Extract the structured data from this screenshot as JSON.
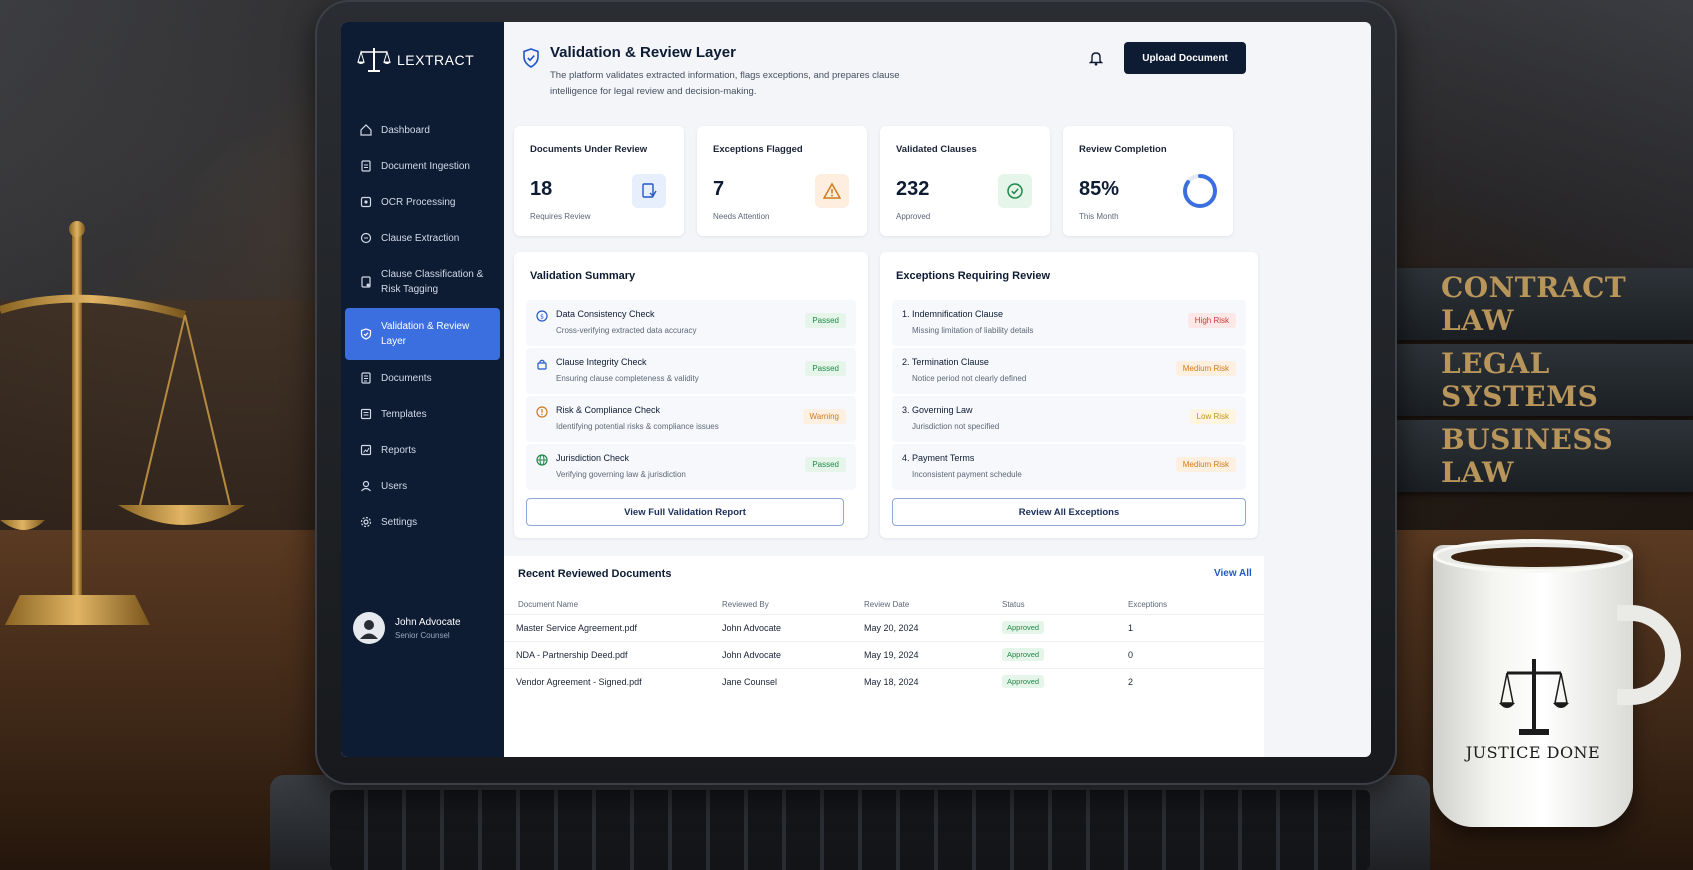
{
  "app": {
    "brand": "LEXTRACT"
  },
  "sidebar": {
    "items": [
      {
        "label": "Dashboard",
        "icon": "home-icon"
      },
      {
        "label": "Document Ingestion",
        "icon": "document-icon"
      },
      {
        "label": "OCR Processing",
        "icon": "ocr-icon"
      },
      {
        "label": "Clause Extraction",
        "icon": "extract-icon"
      },
      {
        "label": "Clause Classification & Risk Tagging",
        "icon": "tag-icon"
      },
      {
        "label": "Validation & Review Layer",
        "icon": "shield-icon"
      },
      {
        "label": "Documents",
        "icon": "documents-icon"
      },
      {
        "label": "Templates",
        "icon": "template-icon"
      },
      {
        "label": "Reports",
        "icon": "report-icon"
      },
      {
        "label": "Users",
        "icon": "user-icon"
      },
      {
        "label": "Settings",
        "icon": "gear-icon"
      }
    ],
    "active_index": 5,
    "user": {
      "name": "John Advocate",
      "role": "Senior Counsel"
    }
  },
  "header": {
    "title": "Validation & Review Layer",
    "description": "The platform validates extracted information, flags exceptions, and prepares clause intelligence for legal review and decision-making.",
    "upload_label": "Upload Document"
  },
  "stats": [
    {
      "label": "Documents Under Review",
      "value": "18",
      "sub": "Requires Review"
    },
    {
      "label": "Exceptions Flagged",
      "value": "7",
      "sub": "Needs Attention"
    },
    {
      "label": "Validated Clauses",
      "value": "232",
      "sub": "Approved"
    },
    {
      "label": "Review Completion",
      "value": "85%",
      "sub": "This Month",
      "progress": 0.85
    }
  ],
  "colors": {
    "accent": "#3b6fe0",
    "navy": "#0d1b33",
    "success": "#1f8a47",
    "warning": "#d07a1a",
    "danger": "#d23838"
  },
  "validation": {
    "title": "Validation Summary",
    "checks": [
      {
        "title": "Data Consistency Check",
        "sub": "Cross-verifying extracted data accuracy",
        "status": "Passed"
      },
      {
        "title": "Clause Integrity Check",
        "sub": "Ensuring clause completeness & validity",
        "status": "Passed"
      },
      {
        "title": "Risk & Compliance Check",
        "sub": "Identifying potential risks & compliance issues",
        "status": "Warning"
      },
      {
        "title": "Jurisdiction Check",
        "sub": "Verifying governing law & jurisdiction",
        "status": "Passed"
      }
    ],
    "button": "View Full Validation Report"
  },
  "exceptions": {
    "title": "Exceptions Requiring Review",
    "items": [
      {
        "title": "1. Indemnification Clause",
        "sub": "Missing limitation of liability details",
        "risk": "High Risk"
      },
      {
        "title": "2. Termination Clause",
        "sub": "Notice period not clearly defined",
        "risk": "Medium Risk"
      },
      {
        "title": "3. Governing Law",
        "sub": "Jurisdiction not specified",
        "risk": "Low Risk"
      },
      {
        "title": "4. Payment Terms",
        "sub": "Inconsistent payment schedule",
        "risk": "Medium Risk"
      }
    ],
    "button": "Review All Exceptions"
  },
  "recent": {
    "title": "Recent Reviewed Documents",
    "view_all": "View All",
    "columns": [
      "Document Name",
      "Reviewed By",
      "Review Date",
      "Status",
      "Exceptions"
    ],
    "rows": [
      {
        "name": "Master Service Agreement.pdf",
        "by": "John Advocate",
        "date": "May 20, 2024",
        "status": "Approved",
        "exceptions": "1"
      },
      {
        "name": "NDA - Partnership Deed.pdf",
        "by": "John Advocate",
        "date": "May 19, 2024",
        "status": "Approved",
        "exceptions": "0"
      },
      {
        "name": "Vendor Agreement - Signed.pdf",
        "by": "Jane Counsel",
        "date": "May 18, 2024",
        "status": "Approved",
        "exceptions": "2"
      }
    ]
  },
  "scene": {
    "books": [
      "CONTRACT LAW",
      "LEGAL SYSTEMS",
      "BUSINESS LAW"
    ],
    "mug_text": "JUSTICE DONE"
  }
}
